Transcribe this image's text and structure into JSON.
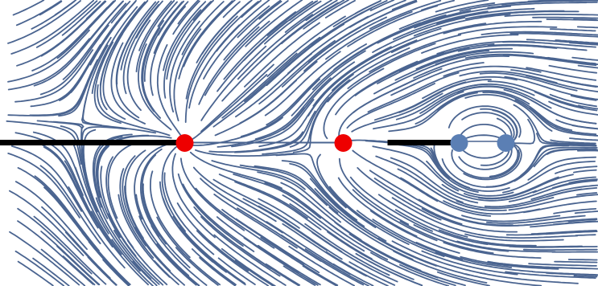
{
  "diagram": {
    "kind": "streamline-field",
    "colors": {
      "background": "#ffffff",
      "streamline": "#4a6490",
      "branch_cut": "#000000",
      "red_marker": "#ee0000",
      "blue_marker": "#5b7fb4"
    }
  }
}
